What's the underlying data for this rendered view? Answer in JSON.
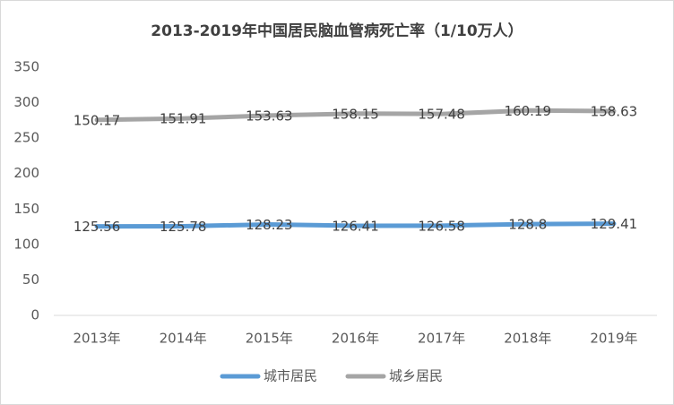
{
  "chart_data": {
    "type": "line",
    "title": "2013-2019年中国居民脑血管病死亡率（1/10万人）",
    "categories": [
      "2013年",
      "2014年",
      "2015年",
      "2016年",
      "2017年",
      "2018年",
      "2019年"
    ],
    "stacked": true,
    "series": [
      {
        "name": "城市居民",
        "color": "#5b9bd5",
        "values": [
          125.56,
          125.78,
          128.23,
          126.41,
          126.58,
          128.8,
          129.41
        ]
      },
      {
        "name": "城乡居民",
        "color": "#a5a5a5",
        "values": [
          150.17,
          151.91,
          153.63,
          158.15,
          157.48,
          160.19,
          158.63
        ]
      }
    ],
    "ylim": [
      0,
      350
    ],
    "yticks": [
      0,
      50,
      100,
      150,
      200,
      250,
      300,
      350
    ],
    "grid": false,
    "legend": "bottom"
  }
}
